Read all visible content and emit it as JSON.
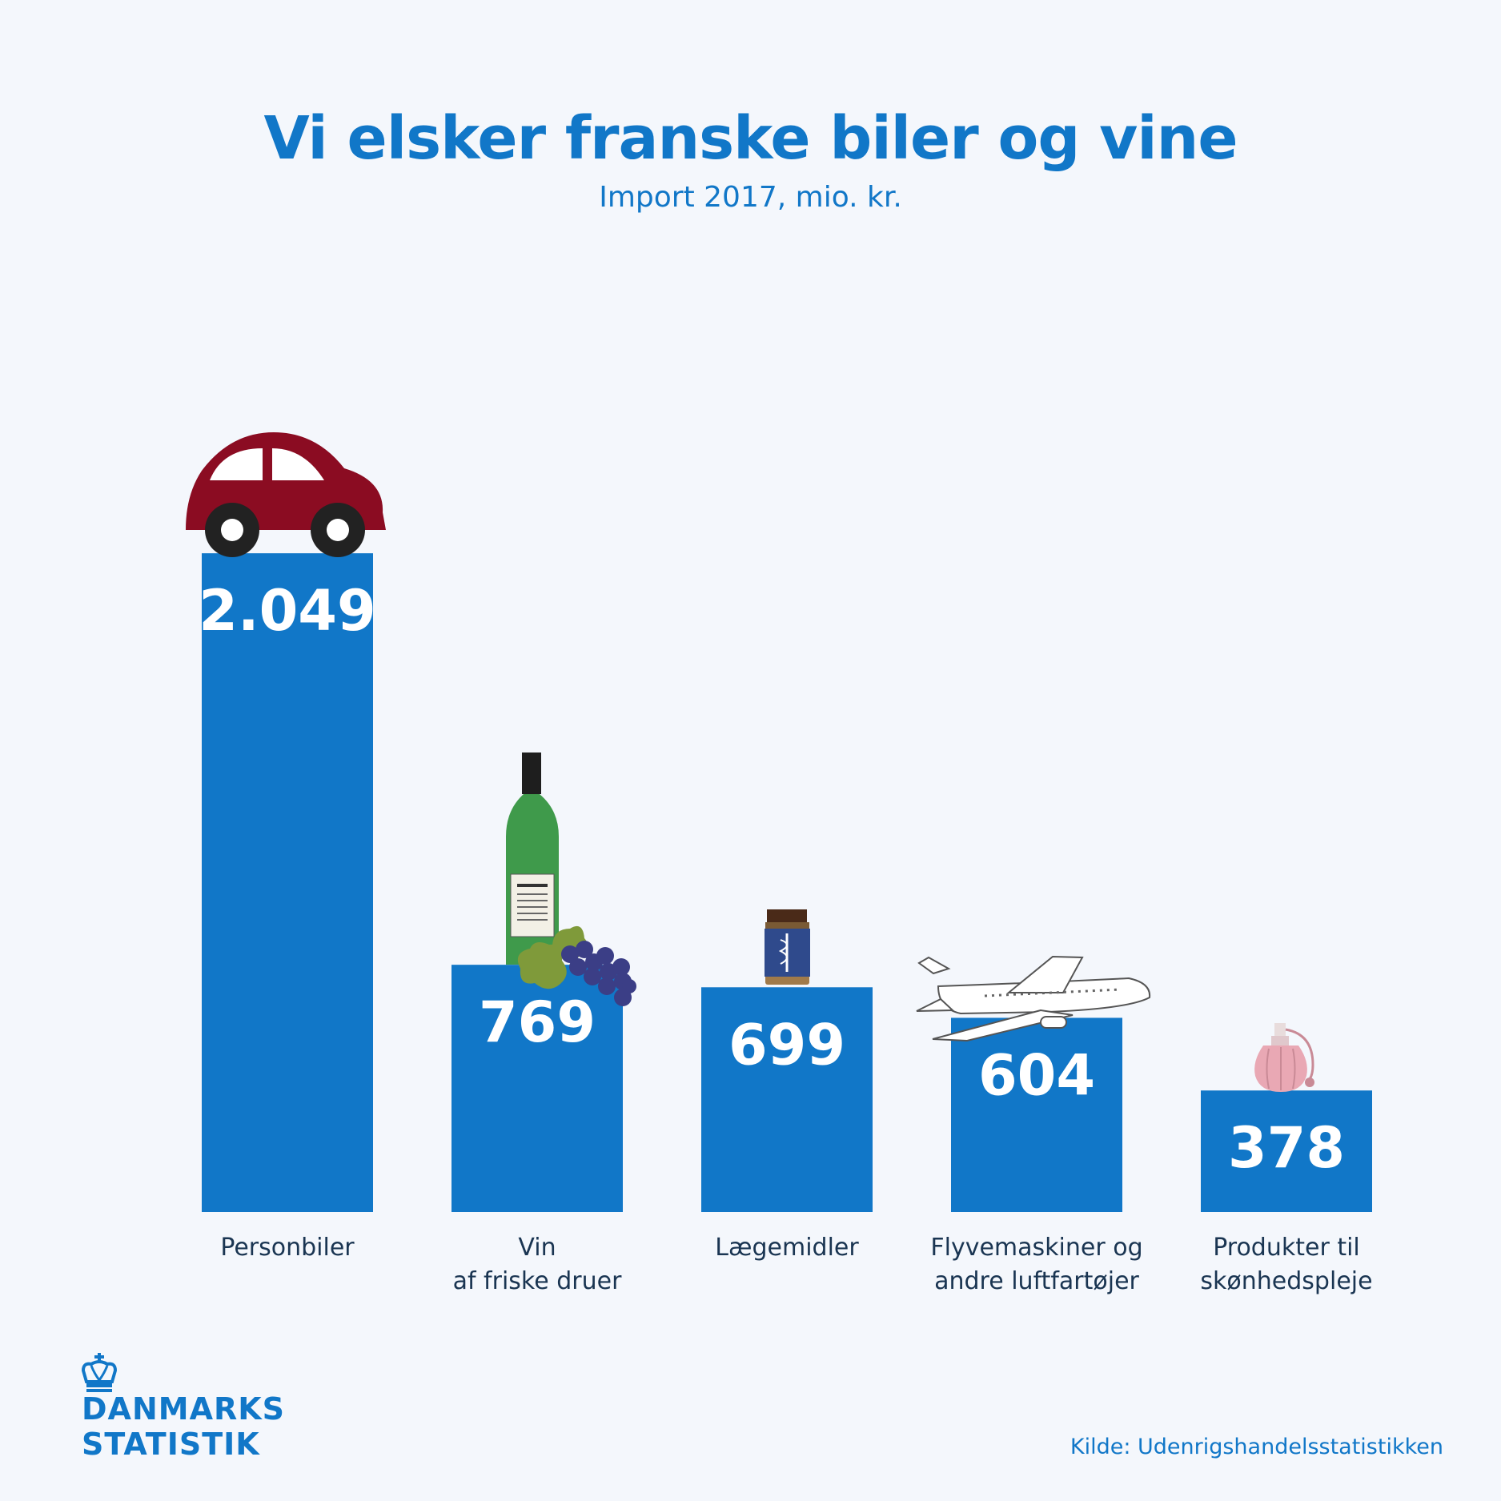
{
  "header": {
    "title": "Vi elsker franske biler og vine",
    "subtitle": "Import 2017, mio. kr."
  },
  "chart_data": {
    "type": "bar",
    "title": "Vi elsker franske biler og vine",
    "subtitle": "Import 2017, mio. kr.",
    "categories": [
      [
        "Personbiler"
      ],
      [
        "Vin",
        "af friske druer"
      ],
      [
        "Lægemidler"
      ],
      [
        "Flyvemaskiner og",
        "andre luftfartøjer"
      ],
      [
        "Produkter til",
        "skønhedspleje"
      ]
    ],
    "values": [
      2049,
      769,
      699,
      604,
      378
    ],
    "value_labels": [
      "2.049",
      "769",
      "699",
      "604",
      "378"
    ],
    "icons": [
      "car-icon",
      "wine-bottle-grapes-icon",
      "medicine-jar-icon",
      "airplane-icon",
      "perfume-bottle-icon"
    ],
    "bar_color": "#1177c8",
    "grid": false,
    "legend": false
  },
  "footer": {
    "logo_line1": "DANMARKS",
    "logo_line2": "STATISTIK",
    "source": "Kilde: Udenrigshandelsstatistikken"
  },
  "colors": {
    "accent": "#1177c8",
    "background": "#f4f7fc"
  }
}
